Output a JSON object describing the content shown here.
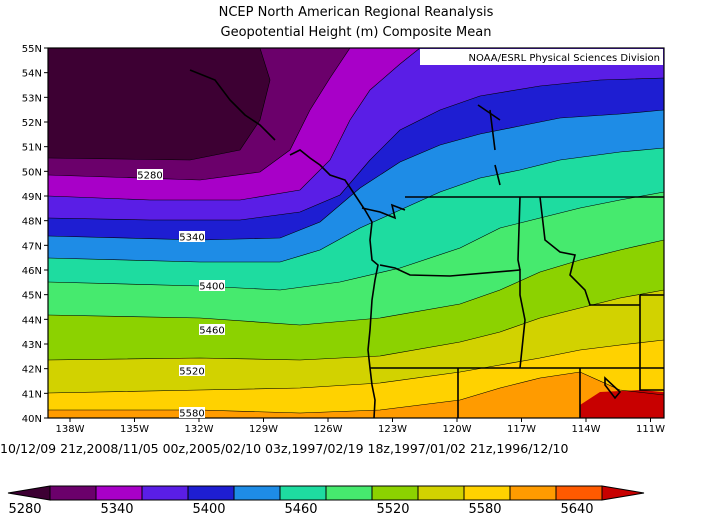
{
  "header": {
    "title": "NCEP North American Regional Reanalysis",
    "subtitle": "Geopotential Height (m) Composite Mean"
  },
  "credit": "NOAA/ESRL Physical Sciences Division",
  "dates_text": "10/12/09 21z,2008/11/05 00z,2005/02/10 03z,1997/02/19 18z,1997/01/02 21z,1996/12/10",
  "map": {
    "lat_labels": [
      "55N",
      "54N",
      "53N",
      "52N",
      "51N",
      "50N",
      "49N",
      "48N",
      "47N",
      "46N",
      "45N",
      "44N",
      "43N",
      "42N",
      "41N",
      "40N"
    ],
    "lon_labels": [
      "138W",
      "135W",
      "132W",
      "129W",
      "126W",
      "123W",
      "120W",
      "117W",
      "114W",
      "111W"
    ],
    "contour_labels": [
      "5280",
      "5340",
      "5400",
      "5460",
      "5520",
      "5580"
    ]
  },
  "colorbar": {
    "colors": [
      "#3d0033",
      "#6b006b",
      "#a800c8",
      "#5a1ee6",
      "#1e1ed2",
      "#1e8ce6",
      "#1edca0",
      "#46ea6e",
      "#8cd200",
      "#d2d200",
      "#ffd200",
      "#ff9b00",
      "#ff5a00",
      "#c80000"
    ],
    "labels": [
      "5280",
      "5340",
      "5400",
      "5460",
      "5520",
      "5580",
      "5640"
    ]
  }
}
